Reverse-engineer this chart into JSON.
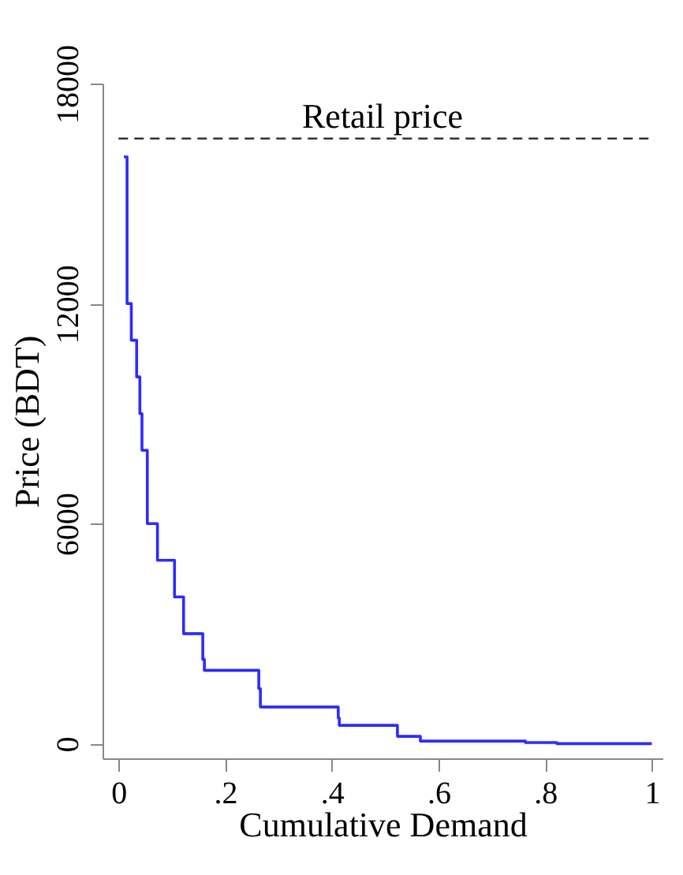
{
  "chart_data": {
    "type": "step",
    "xlabel": "Cumulative Demand",
    "ylabel": "Price (BDT)",
    "x": [
      0.01,
      0.016,
      0.024,
      0.034,
      0.04,
      0.044,
      0.054,
      0.073,
      0.105,
      0.122,
      0.158,
      0.161,
      0.263,
      0.266,
      0.412,
      0.414,
      0.523,
      0.566,
      0.763,
      0.822,
      1.0
    ],
    "series": [
      {
        "color": "#2b2bff",
        "values": [
          16000,
          12000,
          11000,
          10000,
          9000,
          8000,
          6000,
          5000,
          4000,
          3000,
          2300,
          2000,
          1500,
          1000,
          700,
          500,
          200,
          70,
          30,
          0,
          0
        ]
      }
    ],
    "xlim": [
      -0.03,
      1.02
    ],
    "xticks": [
      {
        "value": 0,
        "label": "0"
      },
      {
        "value": 0.2,
        "label": ".2"
      },
      {
        "value": 0.4,
        "label": ".4"
      },
      {
        "value": 0.6,
        "label": ".6"
      },
      {
        "value": 0.8,
        "label": ".8"
      },
      {
        "value": 1,
        "label": "1"
      }
    ],
    "ylim": [
      -400,
      18000
    ],
    "yticks": [
      0,
      6000,
      12000,
      18000
    ],
    "ref_lines": [
      {
        "axis": "y",
        "value": 16500,
        "label": "Retail price",
        "color": "#333333",
        "line_style": "dashed"
      }
    ],
    "grid": false,
    "line_style": "solid",
    "marker": "none"
  }
}
